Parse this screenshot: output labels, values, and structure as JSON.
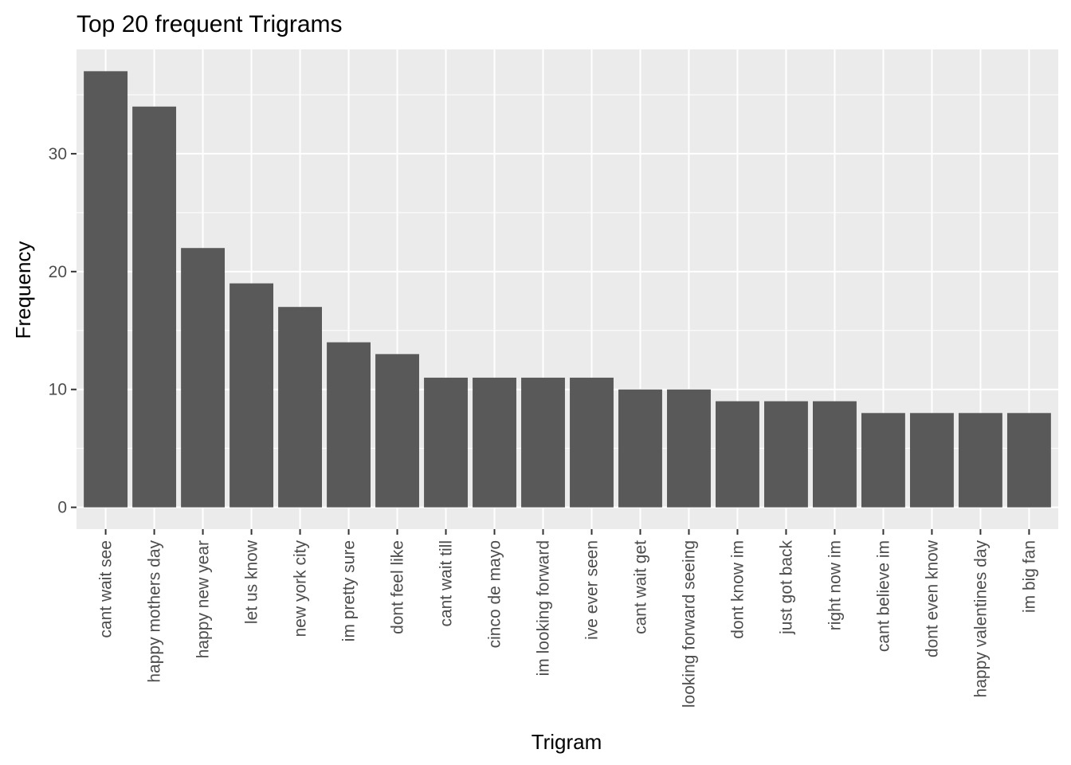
{
  "chart_data": {
    "type": "bar",
    "title": "Top 20 frequent Trigrams",
    "xlabel": "Trigram",
    "ylabel": "Frequency",
    "ylim": [
      -1.85,
      38.85
    ],
    "yticks": [
      0,
      10,
      20,
      30
    ],
    "grid": true,
    "categories": [
      "cant wait see",
      "happy mothers day",
      "happy new year",
      "let us know",
      "new york city",
      "im pretty sure",
      "dont feel like",
      "cant wait till",
      "cinco de mayo",
      "im looking forward",
      "ive ever seen",
      "cant wait get",
      "looking forward seeing",
      "dont know im",
      "just got back",
      "right now im",
      "cant believe im",
      "dont even know",
      "happy valentines day",
      "im big fan"
    ],
    "values": [
      37,
      34,
      22,
      19,
      17,
      14,
      13,
      11,
      11,
      11,
      11,
      10,
      10,
      9,
      9,
      9,
      8,
      8,
      8,
      8
    ],
    "colors": {
      "bar": "#595959",
      "panel": "#ebebeb",
      "grid_major": "#ffffff",
      "tick": "#333333"
    }
  }
}
